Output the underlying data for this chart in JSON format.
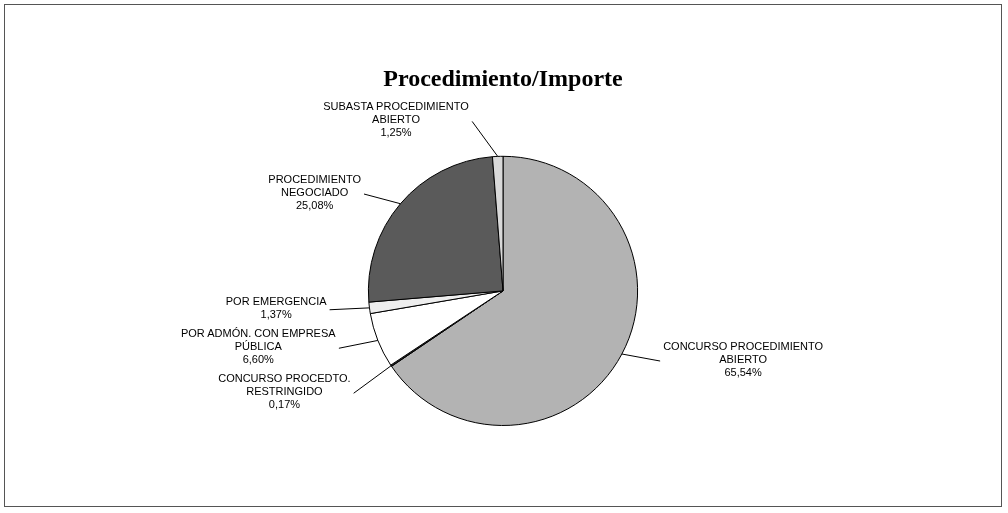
{
  "chart_data": {
    "type": "pie",
    "title": "Procedimiento/Importe",
    "categories": [
      "CONCURSO PROCEDIMIENTO ABIERTO",
      "CONCURSO PROCEDTO. RESTRINGIDO",
      "POR ADMÓN. CON EMPRESA PÚBLICA",
      "POR EMERGENCIA",
      "PROCEDIMIENTO NEGOCIADO",
      "SUBASTA PROCEDIMIENTO ABIERTO"
    ],
    "values": [
      65.54,
      0.17,
      6.6,
      1.37,
      25.08,
      1.25
    ],
    "value_labels": [
      "65,54%",
      "0,17%",
      "6,60%",
      "1,37%",
      "25,08%",
      "1,25%"
    ],
    "colors": [
      "#b3b3b3",
      "#222222",
      "#ffffff",
      "#eeeeee",
      "#5a5a5a",
      "#d9d9d9"
    ],
    "legend": false
  }
}
